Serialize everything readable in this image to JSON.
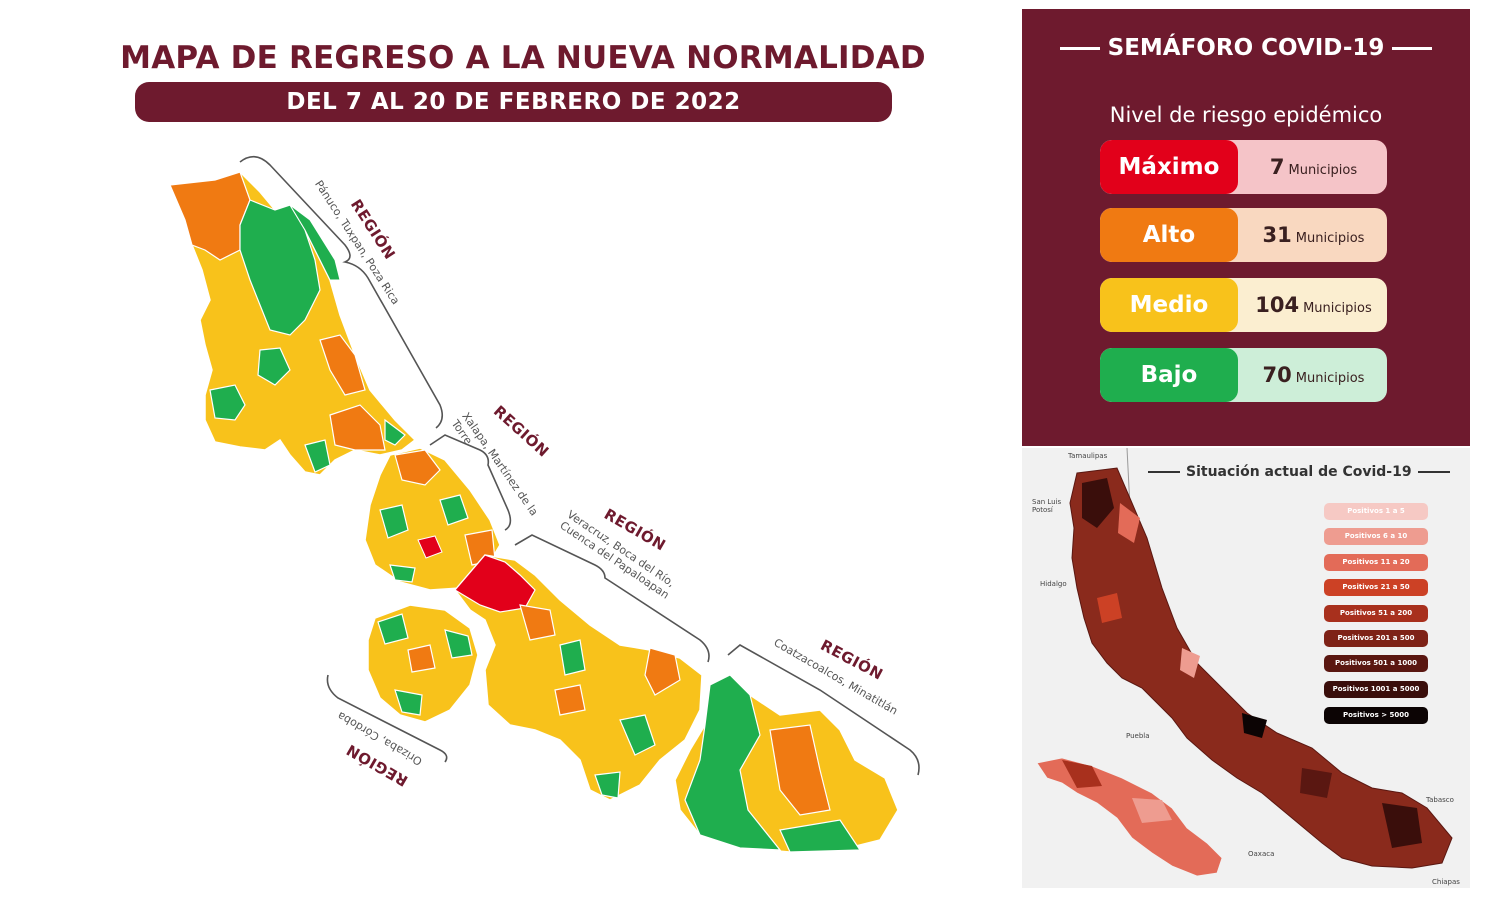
{
  "title": "MAPA DE REGRESO A LA NUEVA NORMALIDAD",
  "subtitle": "DEL 7 AL 20 DE FEBRERO DE 2022",
  "regions": [
    {
      "title": "REGIÓN",
      "subtitle": "Pánuco, Tuxpan, Poza Rica"
    },
    {
      "title": "REGIÓN",
      "subtitle": "Xalapa, Martínez de la Torre"
    },
    {
      "title": "REGIÓN",
      "subtitle": "Veracruz, Boca del Río, Cuenca del Papaloapan"
    },
    {
      "title": "REGIÓN",
      "subtitle": "Coatzacoalcos, Minatitlán"
    },
    {
      "title": "REGIÓN",
      "subtitle": "Orizaba, Córdoba"
    }
  ],
  "semaforo": {
    "title": "SEMÁFORO COVID-19",
    "subtitle": "Nivel de riesgo epidémico",
    "levels": [
      {
        "name": "Máximo",
        "count": "7",
        "unit": "Municipios",
        "color": "#e2001a",
        "light": "#f5c4c8"
      },
      {
        "name": "Alto",
        "count": "31",
        "unit": "Municipios",
        "color": "#f07a12",
        "light": "#f9d8c0"
      },
      {
        "name": "Medio",
        "count": "104",
        "unit": "Municipios",
        "color": "#f8c21b",
        "light": "#fbeed0"
      },
      {
        "name": "Bajo",
        "count": "70",
        "unit": "Municipios",
        "color": "#1fae4e",
        "light": "#cdeed8"
      }
    ]
  },
  "covid": {
    "title": "Situación actual de Covid-19",
    "legend": [
      {
        "label": "Positivos 1 a 5",
        "color": "#f6c9c4"
      },
      {
        "label": "Positivos 6 a 10",
        "color": "#ee9c90"
      },
      {
        "label": "Positivos 11 a 20",
        "color": "#e36b58"
      },
      {
        "label": "Positivos 21 a 50",
        "color": "#cc4125"
      },
      {
        "label": "Positivos 51 a 200",
        "color": "#a8301d"
      },
      {
        "label": "Positivos 201 a 500",
        "color": "#7e2217"
      },
      {
        "label": "Positivos 501 a 1000",
        "color": "#5a1711"
      },
      {
        "label": "Positivos 1001 a 5000",
        "color": "#3a0e0b"
      },
      {
        "label": "Positivos > 5000",
        "color": "#0c0404"
      }
    ],
    "places": [
      "Tamaulipas",
      "San Luis Potosí",
      "Hidalgo",
      "Puebla",
      "Oaxaca",
      "Tabasco",
      "Chiapas"
    ]
  },
  "colors": {
    "maroon": "#6e1a2e",
    "max": "#e2001a",
    "alto": "#f07a12",
    "medio": "#f8c21b",
    "bajo": "#1fae4e"
  }
}
